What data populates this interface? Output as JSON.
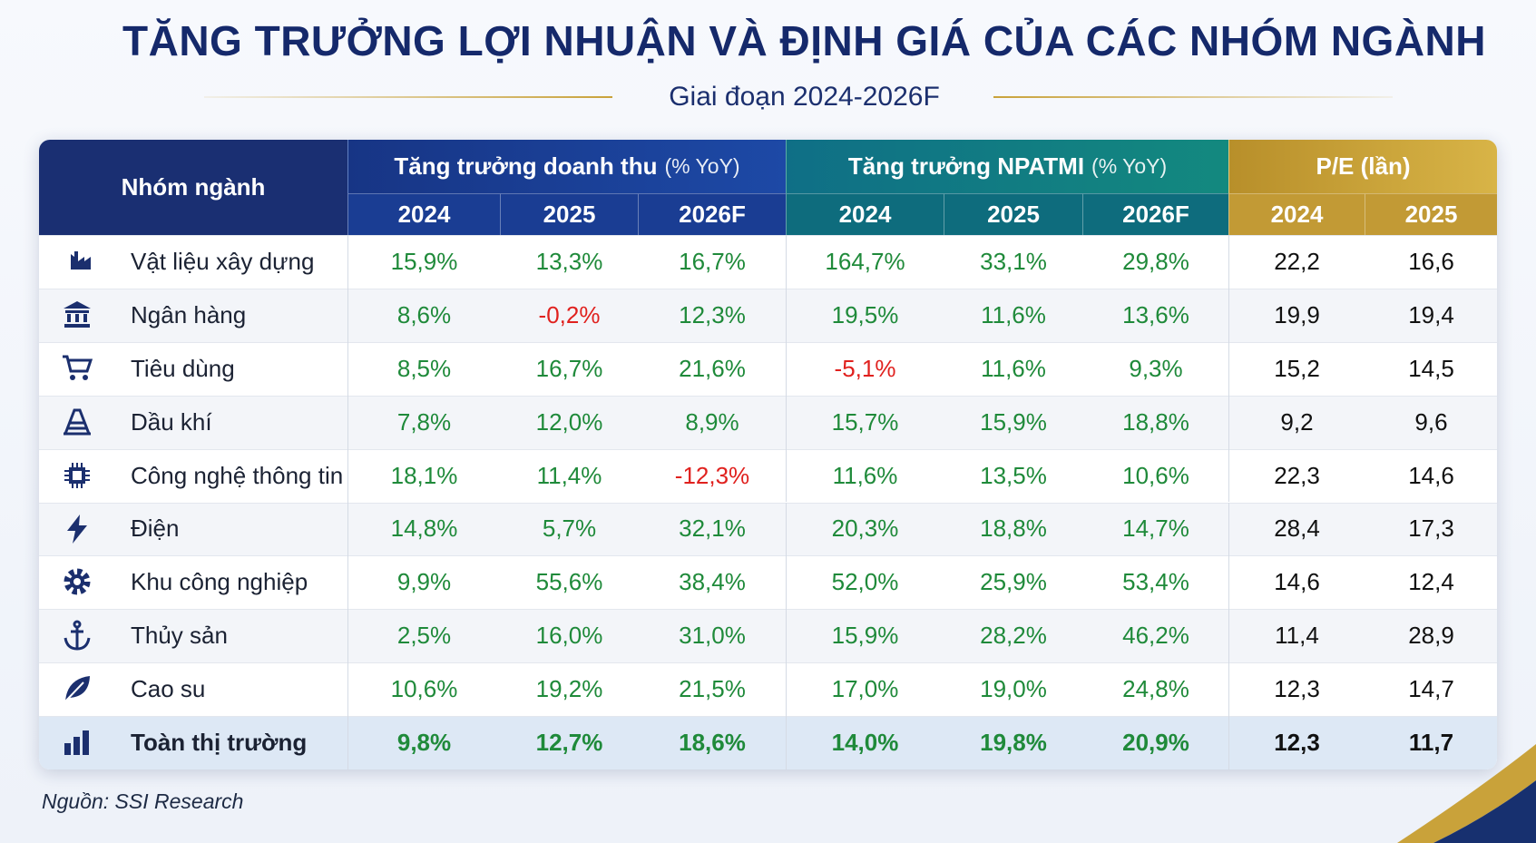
{
  "header": {
    "title": "TĂNG TRƯỞNG LỢI NHUẬN VÀ ĐỊNH GIÁ CỦA CÁC NHÓM NGÀNH",
    "subtitle": "Giai đoạn 2024-2026F"
  },
  "table": {
    "row_header": "Nhóm ngành",
    "groups": [
      {
        "label": "Tăng trưởng doanh thu",
        "unit": "(% YoY)",
        "columns": [
          "2024",
          "2025",
          "2026F"
        ]
      },
      {
        "label": "Tăng trưởng NPATMI",
        "unit": "(% YoY)",
        "columns": [
          "2024",
          "2025",
          "2026F"
        ]
      },
      {
        "label": "P/E (lần)",
        "columns": [
          "2024",
          "2025"
        ]
      }
    ],
    "rows": [
      {
        "name": "Vật liệu xây dựng",
        "cells": [
          "15,9%",
          "13,3%",
          "16,7%",
          "164,7%",
          "33,1%",
          "29,8%",
          "22,2",
          "16,6"
        ]
      },
      {
        "name": "Ngân hàng",
        "cells": [
          "8,6%",
          "-0,2%",
          "12,3%",
          "19,5%",
          "11,6%",
          "13,6%",
          "19,9",
          "19,4"
        ]
      },
      {
        "name": "Tiêu dùng",
        "cells": [
          "8,5%",
          "16,7%",
          "21,6%",
          "-5,1%",
          "11,6%",
          "9,3%",
          "15,2",
          "14,5"
        ]
      },
      {
        "name": "Dầu khí",
        "cells": [
          "7,8%",
          "12,0%",
          "8,9%",
          "15,7%",
          "15,9%",
          "18,8%",
          "9,2",
          "9,6"
        ]
      },
      {
        "name": "Công nghệ thông tin",
        "cells": [
          "18,1%",
          "11,4%",
          "-12,3%",
          "11,6%",
          "13,5%",
          "10,6%",
          "22,3",
          "14,6"
        ]
      },
      {
        "name": "Điện",
        "cells": [
          "14,8%",
          "5,7%",
          "32,1%",
          "20,3%",
          "18,8%",
          "14,7%",
          "28,4",
          "17,3"
        ]
      },
      {
        "name": "Khu công nghiệp",
        "cells": [
          "9,9%",
          "55,6%",
          "38,4%",
          "52,0%",
          "25,9%",
          "53,4%",
          "14,6",
          "12,4"
        ]
      },
      {
        "name": "Thủy sản",
        "cells": [
          "2,5%",
          "16,0%",
          "31,0%",
          "15,9%",
          "28,2%",
          "46,2%",
          "11,4",
          "28,9"
        ]
      },
      {
        "name": "Cao su",
        "cells": [
          "10,6%",
          "19,2%",
          "21,5%",
          "17,0%",
          "19,0%",
          "24,8%",
          "12,3",
          "14,7"
        ]
      },
      {
        "name": "Toàn thị trường",
        "cells": [
          "9,8%",
          "12,7%",
          "18,6%",
          "14,0%",
          "19,8%",
          "20,9%",
          "12,3",
          "11,7"
        ]
      }
    ]
  },
  "source": "Nguồn: SSI Research"
}
